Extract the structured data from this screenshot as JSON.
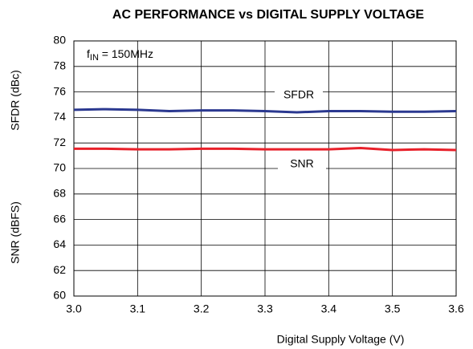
{
  "chart_data": {
    "type": "line",
    "title": "AC PERFORMANCE vs DIGITAL SUPPLY VOLTAGE",
    "x_label": "Digital Supply Voltage (V)",
    "y_labels": [
      "SFDR (dBc)",
      "SNR (dBFS)"
    ],
    "annotation": {
      "main": "f",
      "subscript": "IN",
      "suffix": " = 150MHz"
    },
    "x": [
      3.0,
      3.05,
      3.1,
      3.15,
      3.2,
      3.25,
      3.3,
      3.35,
      3.4,
      3.45,
      3.5,
      3.55,
      3.6
    ],
    "series": [
      {
        "name": "SFDR",
        "color": "#2b3990",
        "values": [
          74.6,
          74.65,
          74.6,
          74.5,
          74.55,
          74.55,
          74.5,
          74.4,
          74.5,
          74.5,
          74.45,
          74.45,
          74.5
        ]
      },
      {
        "name": "SNR",
        "color": "#e8202a",
        "values": [
          71.55,
          71.55,
          71.5,
          71.5,
          71.55,
          71.55,
          71.5,
          71.5,
          71.5,
          71.6,
          71.45,
          71.5,
          71.45
        ]
      }
    ],
    "xlim": [
      3.0,
      3.6
    ],
    "xticks": [
      {
        "value": 3,
        "label": "3.0"
      },
      3.1,
      3.2,
      3.3,
      3.4,
      3.5,
      {
        "value": 3.6,
        "label": "3.6"
      }
    ],
    "ylim": [
      60,
      80
    ],
    "yticks": [
      60,
      62,
      64,
      66,
      68,
      70,
      72,
      74,
      76,
      78,
      80
    ],
    "grid": true
  }
}
